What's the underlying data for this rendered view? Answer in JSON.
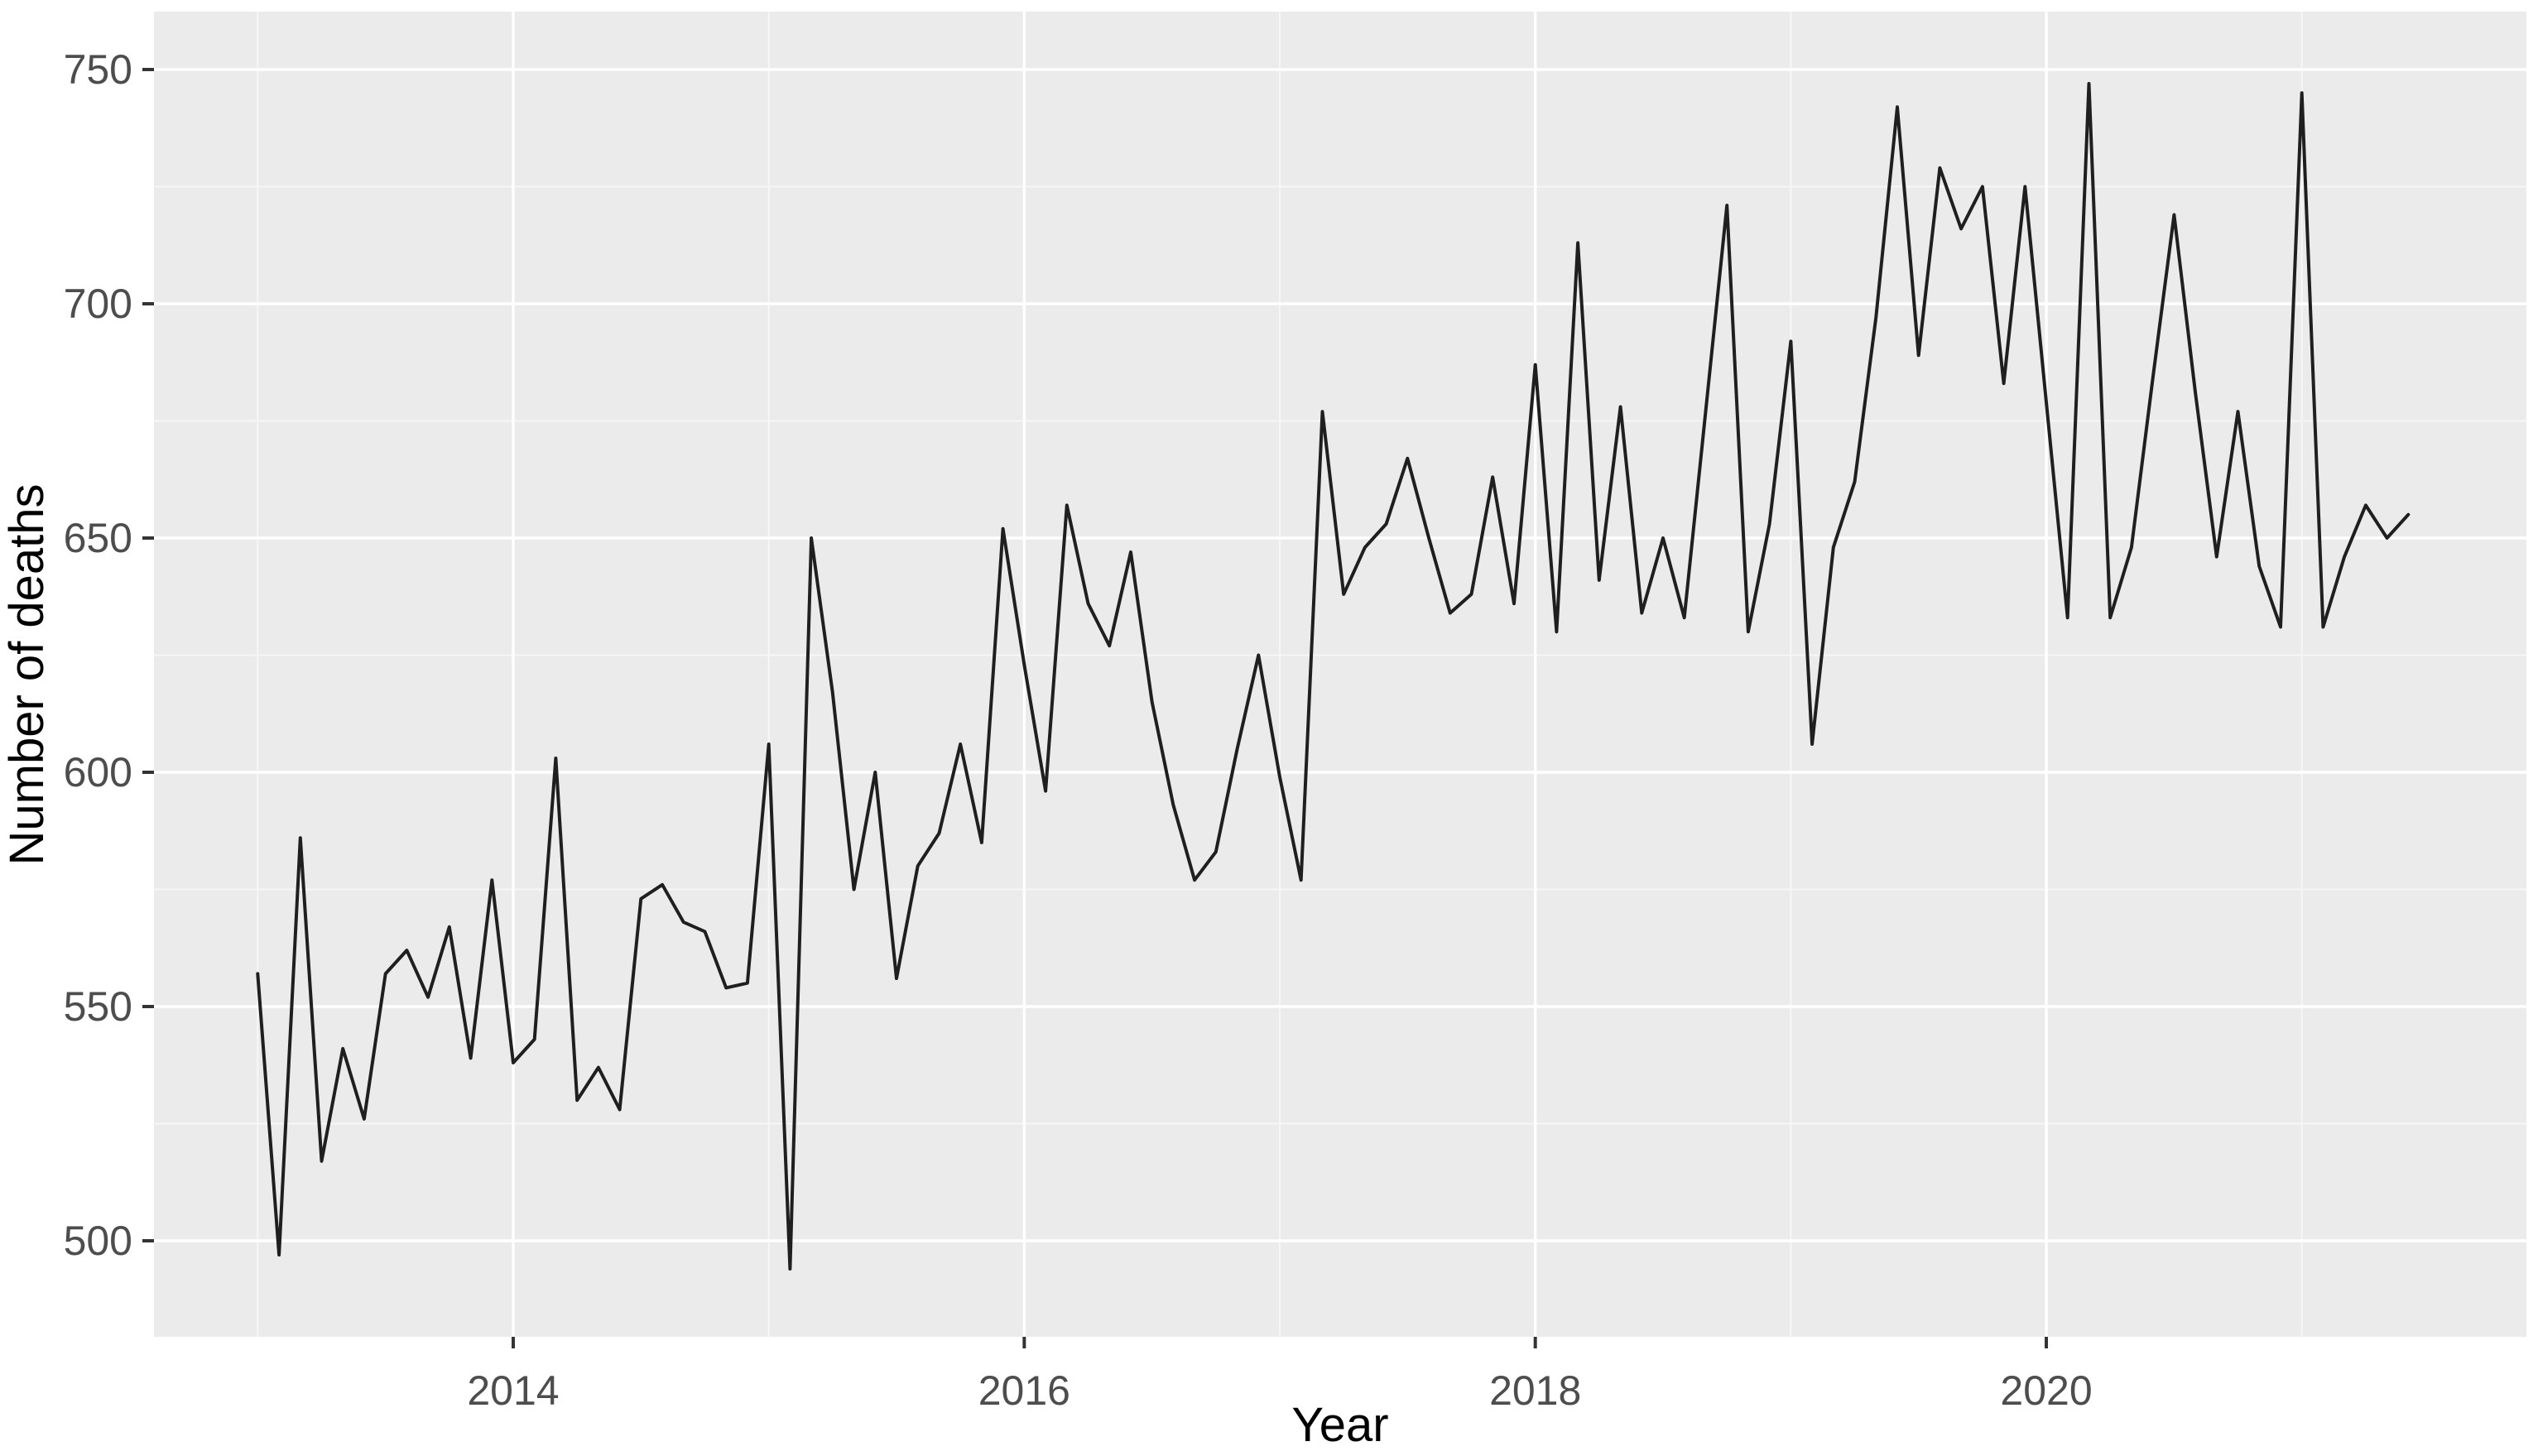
{
  "chart_data": {
    "type": "line",
    "title": "",
    "xlabel": "Year",
    "ylabel": "Number of deaths",
    "x_start_year": 2013,
    "frequency": "monthly",
    "xlim": [
      2012.57,
      2021.95
    ],
    "ylim": [
      480,
      762
    ],
    "x_ticks_major": [
      2014,
      2016,
      2018,
      2020
    ],
    "x_ticks_minor": [
      2013,
      2015,
      2017,
      2019,
      2021
    ],
    "y_ticks_major": [
      500,
      550,
      600,
      650,
      700,
      750
    ],
    "y_ticks_minor": [
      525,
      575,
      625,
      675,
      725
    ],
    "grid": "on",
    "legend": "none",
    "series": [
      {
        "name": "Number of deaths",
        "values": [
          557,
          497,
          586,
          517,
          541,
          526,
          557,
          562,
          552,
          567,
          539,
          577,
          538,
          543,
          603,
          530,
          537,
          528,
          573,
          576,
          568,
          566,
          554,
          555,
          606,
          494,
          650,
          617,
          575,
          600,
          556,
          580,
          587,
          606,
          585,
          652,
          623,
          596,
          657,
          636,
          627,
          647,
          615,
          593,
          577,
          583,
          605,
          625,
          599,
          577,
          677,
          638,
          648,
          653,
          667,
          650,
          634,
          638,
          663,
          636,
          687,
          630,
          713,
          641,
          678,
          634,
          650,
          633,
          677,
          721,
          630,
          653,
          692,
          606,
          648,
          662,
          697,
          742,
          689,
          729,
          716,
          725,
          683,
          725,
          679,
          633,
          747,
          633,
          648,
          684,
          719,
          681,
          646,
          677,
          644,
          631,
          745,
          631,
          646,
          657,
          650,
          655
        ]
      }
    ],
    "colors": {
      "panel_background": "#EBEBEB",
      "grid_major": "#FFFFFF",
      "grid_minor": "#F7F7F7",
      "line": "#1F1F1F",
      "tick_text": "#4D4D4D",
      "axis_title_text": "#000000",
      "tick_mark": "#333333"
    }
  }
}
